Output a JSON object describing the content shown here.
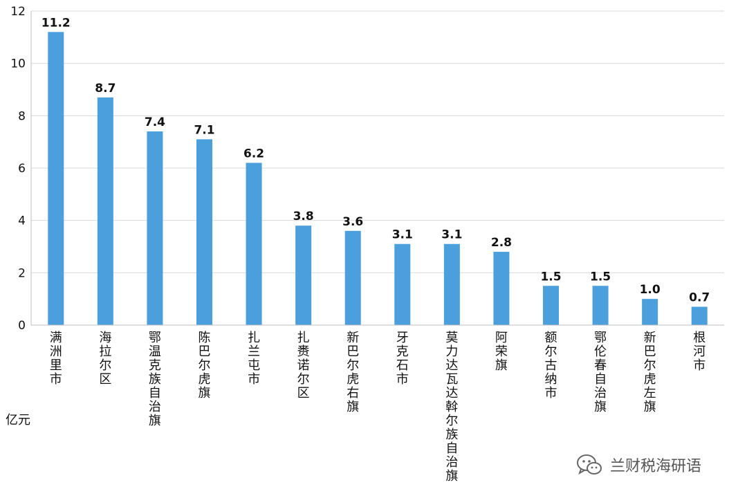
{
  "chart_data": {
    "type": "bar",
    "categories": [
      "满洲里市",
      "海拉尔区",
      "鄂温克族自治旗",
      "陈巴尔虎旗",
      "扎兰屯市",
      "扎赉诺尔区",
      "新巴尔虎右旗",
      "牙克石市",
      "莫力达瓦达斡尔族自治旗",
      "阿荣旗",
      "额尔古纳市",
      "鄂伦春自治旗",
      "新巴尔虎左旗",
      "根河市"
    ],
    "values": [
      11.2,
      8.7,
      7.4,
      7.1,
      6.2,
      3.8,
      3.6,
      3.1,
      3.1,
      2.8,
      1.5,
      1.5,
      1.0,
      0.7
    ],
    "value_labels": [
      "11.2",
      "8.7",
      "7.4",
      "7.1",
      "6.2",
      "3.8",
      "3.6",
      "3.1",
      "3.1",
      "2.8",
      "1.5",
      "1.5",
      "1.0",
      "0.7"
    ],
    "yticks": [
      "0",
      "2",
      "4",
      "6",
      "8",
      "10",
      "12"
    ],
    "ylim": [
      0,
      12
    ],
    "ylabel": "亿元",
    "xlabel": "",
    "title": "",
    "grid": true,
    "bar_color": "#4a9fdc"
  },
  "watermark": {
    "text": "兰财税海研语",
    "icon": "wechat-icon"
  }
}
